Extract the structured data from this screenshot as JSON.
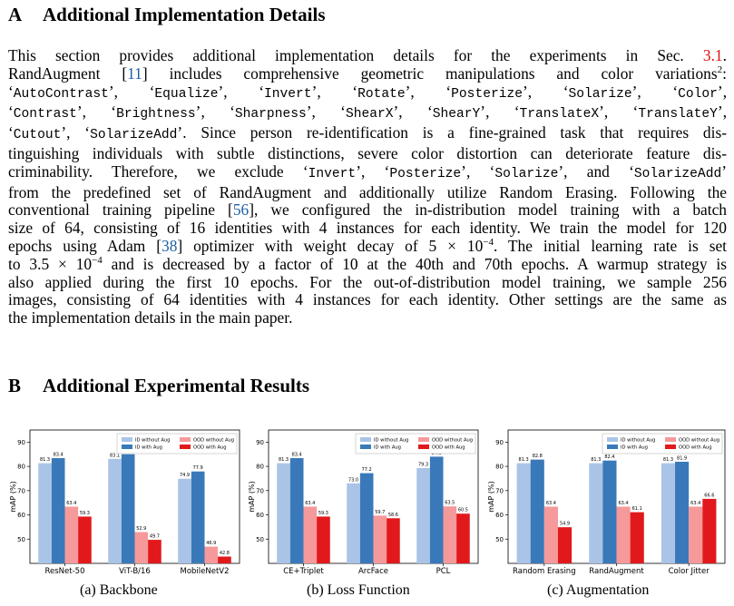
{
  "sectionA": {
    "letter": "A",
    "title": "Additional Implementation Details"
  },
  "sectionB": {
    "letter": "B",
    "title": "Additional Experimental Results"
  },
  "paragraph": [
    [
      {
        "t": "This section provides additional implementation details for the experiments in Sec. "
      },
      {
        "t": "3.1",
        "c": "ref"
      },
      {
        "t": "."
      }
    ],
    [
      {
        "t": "RandAugment ["
      },
      {
        "t": "11",
        "c": "cite"
      },
      {
        "t": "] includes comprehensive geometric manipulations and color variations"
      },
      {
        "t": "2",
        "c": "sup"
      },
      {
        "t": ":"
      }
    ],
    [
      {
        "t": "‘"
      },
      {
        "t": "AutoContrast",
        "c": "tt"
      },
      {
        "t": "’, ‘"
      },
      {
        "t": "Equalize",
        "c": "tt"
      },
      {
        "t": "’, ‘"
      },
      {
        "t": "Invert",
        "c": "tt"
      },
      {
        "t": "’, ‘"
      },
      {
        "t": "Rotate",
        "c": "tt"
      },
      {
        "t": "’, ‘"
      },
      {
        "t": "Posterize",
        "c": "tt"
      },
      {
        "t": "’, ‘"
      },
      {
        "t": "Solarize",
        "c": "tt"
      },
      {
        "t": "’, ‘"
      },
      {
        "t": "Color",
        "c": "tt"
      },
      {
        "t": "’,"
      }
    ],
    [
      {
        "t": "‘"
      },
      {
        "t": "Contrast",
        "c": "tt"
      },
      {
        "t": "’, ‘"
      },
      {
        "t": "Brightness",
        "c": "tt"
      },
      {
        "t": "’, ‘"
      },
      {
        "t": "Sharpness",
        "c": "tt"
      },
      {
        "t": "’, ‘"
      },
      {
        "t": "ShearX",
        "c": "tt"
      },
      {
        "t": "’, ‘"
      },
      {
        "t": "ShearY",
        "c": "tt"
      },
      {
        "t": "’, ‘"
      },
      {
        "t": "TranslateX",
        "c": "tt"
      },
      {
        "t": "’, ‘"
      },
      {
        "t": "TranslateY",
        "c": "tt"
      },
      {
        "t": "’,"
      }
    ],
    [
      {
        "t": "‘"
      },
      {
        "t": "Cutout",
        "c": "tt"
      },
      {
        "t": "’, ‘"
      },
      {
        "t": "SolarizeAdd",
        "c": "tt"
      },
      {
        "t": "’. Since person re-identification is a fine-grained task that requires dis-"
      }
    ],
    [
      {
        "t": "tinguishing individuals with subtle distinctions, severe color distortion can deteriorate feature dis-"
      }
    ],
    [
      {
        "t": "criminability. Therefore, we exclude ‘"
      },
      {
        "t": "Invert",
        "c": "tt"
      },
      {
        "t": "’, ‘"
      },
      {
        "t": "Posterize",
        "c": "tt"
      },
      {
        "t": "’, ‘"
      },
      {
        "t": "Solarize",
        "c": "tt"
      },
      {
        "t": "’, and ‘"
      },
      {
        "t": "SolarizeAdd",
        "c": "tt"
      },
      {
        "t": "’"
      }
    ],
    [
      {
        "t": "from the predefined set of RandAugment and additionally utilize Random Erasing. Following the"
      }
    ],
    [
      {
        "t": "conventional training pipeline ["
      },
      {
        "t": "56",
        "c": "cite"
      },
      {
        "t": "], we configured the in-distribution model training with a batch"
      }
    ],
    [
      {
        "t": "size of 64, consisting of 16 identities with 4 instances for each identity. We train the model for 120"
      }
    ],
    [
      {
        "t": "epochs using Adam ["
      },
      {
        "t": "38",
        "c": "cite"
      },
      {
        "t": "] optimizer with weight decay of 5 × 10"
      },
      {
        "t": "−4",
        "c": "sup"
      },
      {
        "t": ". The initial learning rate is set"
      }
    ],
    [
      {
        "t": "to 3.5 × 10"
      },
      {
        "t": "−4",
        "c": "sup"
      },
      {
        "t": " and is decreased by a factor of 10 at the 40th and 70th epochs. A warmup strategy is"
      }
    ],
    [
      {
        "t": "also applied during the first 10 epochs. For the out-of-distribution model training, we sample 256"
      }
    ],
    [
      {
        "t": "images, consisting of 64 identities with 4 instances for each identity. Other settings are the same as"
      }
    ],
    [
      {
        "t": "the implementation details in the main paper."
      }
    ]
  ],
  "colors": {
    "id_without_aug": "#a9c4e6",
    "id_with_aug": "#3a79b9",
    "ood_without_aug": "#f6999a",
    "ood_with_aug": "#e2191c",
    "citation": "#1b5fa8",
    "section_ref": "#d11111"
  },
  "chart_data": [
    {
      "type": "bar",
      "caption": "(a) Backbone",
      "ylabel": "mAP (%)",
      "ylim": [
        40,
        95
      ],
      "yticks": [
        50,
        60,
        70,
        80,
        90
      ],
      "legend_position": "top-right",
      "categories": [
        "ResNet-50",
        "ViT-B/16",
        "MobileNetV2"
      ],
      "series": [
        {
          "name": "ID without Aug",
          "values": [
            81.3,
            83.1,
            74.9
          ]
        },
        {
          "name": "ID with Aug",
          "values": [
            83.4,
            85.0,
            77.9
          ]
        },
        {
          "name": "OOD without Aug",
          "values": [
            63.4,
            52.9,
            46.9
          ]
        },
        {
          "name": "OOD with Aug",
          "values": [
            59.3,
            49.7,
            42.8
          ]
        }
      ]
    },
    {
      "type": "bar",
      "caption": "(b) Loss Function",
      "ylabel": "mAP (%)",
      "ylim": [
        40,
        95
      ],
      "yticks": [
        50,
        60,
        70,
        80,
        90
      ],
      "legend_position": "top-right",
      "categories": [
        "CE+Triplet",
        "ArcFace",
        "PCL"
      ],
      "series": [
        {
          "name": "ID without Aug",
          "values": [
            81.3,
            73.0,
            79.3
          ]
        },
        {
          "name": "ID with Aug",
          "values": [
            83.4,
            77.2,
            84.0
          ]
        },
        {
          "name": "OOD without Aug",
          "values": [
            63.4,
            59.7,
            63.5
          ]
        },
        {
          "name": "OOD with Aug",
          "values": [
            59.3,
            58.6,
            60.5
          ]
        }
      ]
    },
    {
      "type": "bar",
      "caption": "(c) Augmentation",
      "ylabel": "mAP (%)",
      "ylim": [
        40,
        95
      ],
      "yticks": [
        50,
        60,
        70,
        80,
        90
      ],
      "legend_position": "top-right",
      "categories": [
        "Random Erasing",
        "RandAugment",
        "Color Jitter"
      ],
      "series": [
        {
          "name": "ID without Aug",
          "values": [
            81.3,
            81.3,
            81.3
          ]
        },
        {
          "name": "ID with Aug",
          "values": [
            82.8,
            82.4,
            81.9
          ]
        },
        {
          "name": "OOD without Aug",
          "values": [
            63.4,
            63.4,
            63.4
          ]
        },
        {
          "name": "OOD with Aug",
          "values": [
            54.9,
            61.1,
            66.6
          ]
        }
      ]
    }
  ]
}
